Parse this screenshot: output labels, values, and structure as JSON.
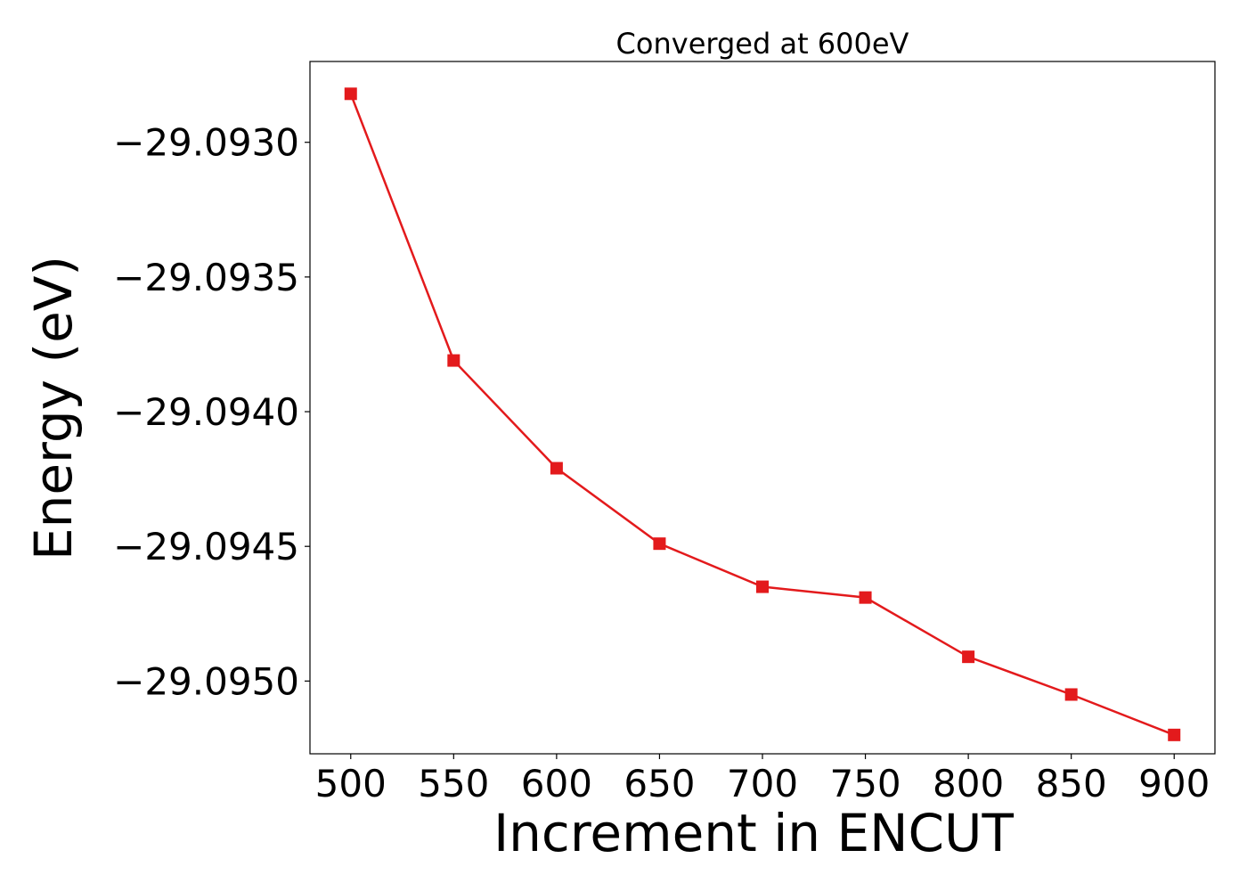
{
  "chart_data": {
    "type": "line",
    "title": "Converged at 600eV",
    "xlabel": "Increment in ENCUT",
    "ylabel": "Energy (eV)",
    "x": [
      500,
      550,
      600,
      650,
      700,
      750,
      800,
      850,
      900
    ],
    "series": [
      {
        "values": [
          -29.09282,
          -29.09381,
          -29.09421,
          -29.09449,
          -29.09465,
          -29.09469,
          -29.09491,
          -29.09505,
          -29.0952
        ],
        "color": "#e31a1c",
        "marker": "square"
      }
    ],
    "xticks": [
      500,
      550,
      600,
      650,
      700,
      750,
      800,
      850,
      900
    ],
    "xtick_labels": [
      "500",
      "550",
      "600",
      "650",
      "700",
      "750",
      "800",
      "850",
      "900"
    ],
    "yticks": [
      -29.093,
      -29.0935,
      -29.094,
      -29.0945,
      -29.095
    ],
    "ytick_labels": [
      "−29.0930",
      "−29.0935",
      "−29.0940",
      "−29.0945",
      "−29.0950"
    ],
    "xlim": [
      480.2,
      919.8
    ],
    "ylim": [
      -29.09527,
      -29.0927
    ],
    "grid": false
  }
}
